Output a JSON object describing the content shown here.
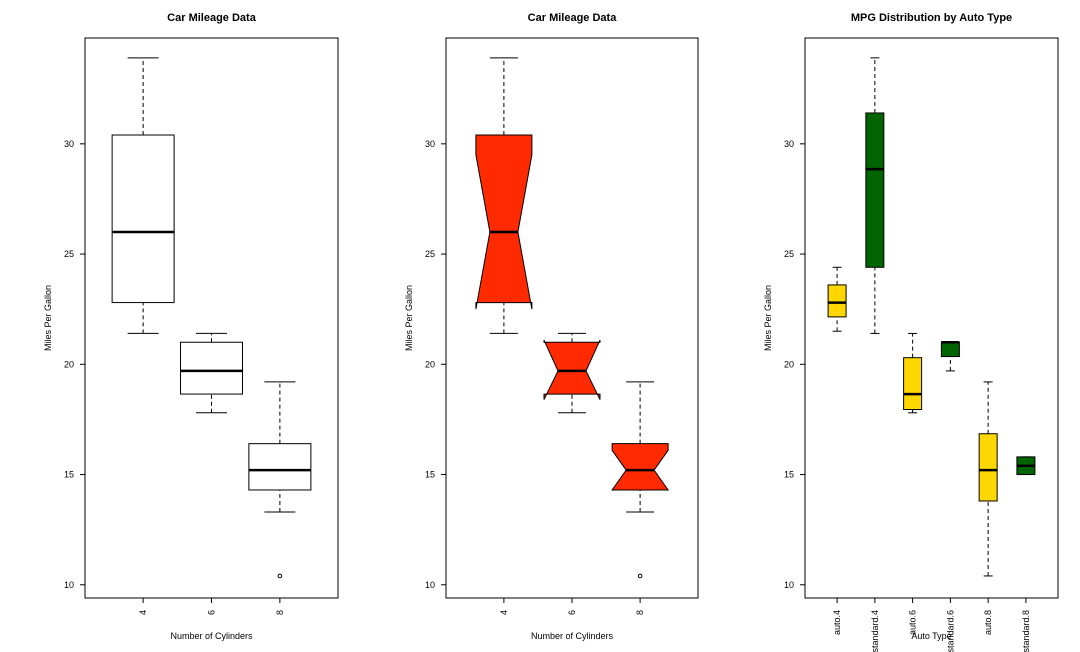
{
  "chart_data": [
    {
      "type": "boxplot",
      "title": "Car Mileage Data",
      "xlabel": "Number of Cylinders",
      "ylabel": "Miles Per Gallon",
      "ylim": [
        9.4,
        34.8
      ],
      "yticks": [
        10,
        15,
        20,
        25,
        30
      ],
      "categories": [
        "4",
        "6",
        "8"
      ],
      "notch": false,
      "fill_colors": [
        "#ffffff",
        "#ffffff",
        "#ffffff"
      ],
      "boxes": [
        {
          "whisker_low": 21.4,
          "q1": 22.8,
          "median": 26.0,
          "q3": 30.4,
          "whisker_high": 33.9,
          "outliers": []
        },
        {
          "whisker_low": 17.8,
          "q1": 18.65,
          "median": 19.7,
          "q3": 21.0,
          "whisker_high": 21.4,
          "outliers": []
        },
        {
          "whisker_low": 13.3,
          "q1": 14.3,
          "median": 15.2,
          "q3": 16.4,
          "whisker_high": 19.2,
          "outliers": [
            10.4
          ]
        }
      ]
    },
    {
      "type": "boxplot",
      "title": "Car Mileage Data",
      "xlabel": "Number of Cylinders",
      "ylabel": "Miles Per Gallon",
      "ylim": [
        9.4,
        34.8
      ],
      "yticks": [
        10,
        15,
        20,
        25,
        30
      ],
      "categories": [
        "4",
        "6",
        "8"
      ],
      "notch": true,
      "fill_colors": [
        "#ff2a00",
        "#ff2a00",
        "#ff2a00"
      ],
      "boxes": [
        {
          "whisker_low": 21.4,
          "q1": 22.8,
          "median": 26.0,
          "q3": 30.4,
          "whisker_high": 33.9,
          "notch_low": 22.5,
          "notch_high": 29.5,
          "outliers": []
        },
        {
          "whisker_low": 17.8,
          "q1": 18.65,
          "median": 19.7,
          "q3": 21.0,
          "whisker_high": 21.4,
          "notch_low": 18.4,
          "notch_high": 21.1,
          "outliers": []
        },
        {
          "whisker_low": 13.3,
          "q1": 14.3,
          "median": 15.2,
          "q3": 16.4,
          "whisker_high": 19.2,
          "notch_low": 14.3,
          "notch_high": 16.1,
          "outliers": [
            10.4
          ]
        }
      ]
    },
    {
      "type": "boxplot",
      "title": "MPG Distribution by Auto Type",
      "xlabel": "Auto Type",
      "ylabel": "Miles Per Gallon",
      "ylim": [
        9.4,
        34.8
      ],
      "yticks": [
        10,
        15,
        20,
        25,
        30
      ],
      "categories": [
        "auto.4",
        "standard.4",
        "auto.6",
        "standard.6",
        "auto.8",
        "standard.8"
      ],
      "notch": false,
      "fill_colors": [
        "#ffd700",
        "#006400",
        "#ffd700",
        "#006400",
        "#ffd700",
        "#006400"
      ],
      "boxes": [
        {
          "whisker_low": 21.5,
          "q1": 22.15,
          "median": 22.8,
          "q3": 23.6,
          "whisker_high": 24.4,
          "outliers": []
        },
        {
          "whisker_low": 21.4,
          "q1": 24.4,
          "median": 28.85,
          "q3": 31.4,
          "whisker_high": 33.9,
          "outliers": []
        },
        {
          "whisker_low": 17.8,
          "q1": 17.95,
          "median": 18.65,
          "q3": 20.3,
          "whisker_high": 21.4,
          "outliers": []
        },
        {
          "whisker_low": 19.7,
          "q1": 20.35,
          "median": 21.0,
          "q3": 21.0,
          "whisker_high": 21.0,
          "outliers": []
        },
        {
          "whisker_low": 10.4,
          "q1": 13.8,
          "median": 15.2,
          "q3": 16.85,
          "whisker_high": 19.2,
          "outliers": []
        },
        {
          "whisker_low": 15.0,
          "q1": 15.0,
          "median": 15.4,
          "q3": 15.8,
          "whisker_high": 15.8,
          "outliers": []
        }
      ]
    }
  ]
}
